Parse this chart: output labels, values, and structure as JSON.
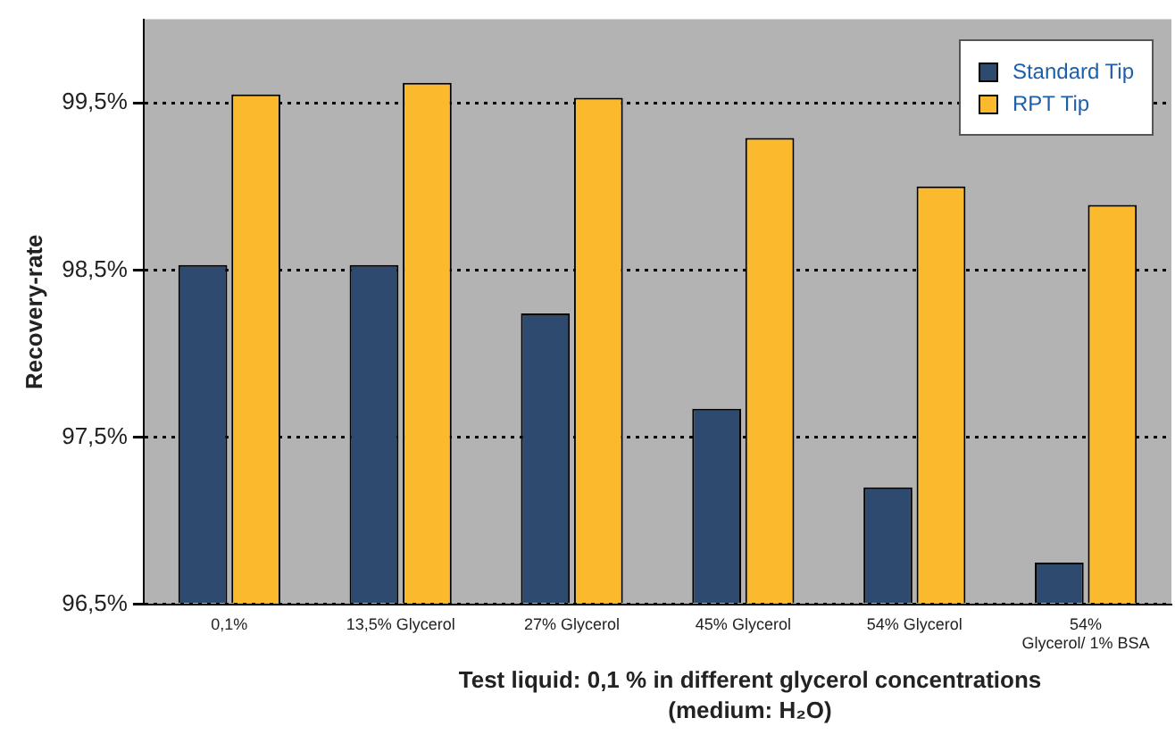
{
  "chart_data": {
    "type": "bar",
    "ylabel": "Recovery-rate",
    "xlabel": "Test liquid: 0,1 % in different glycerol concentrations (medium: H₂O)",
    "categories": [
      "0,1%",
      "13,5% Glycerol",
      "27% Glycerol",
      "45% Glycerol",
      "54% Glycerol",
      "54% Glycerol/ 1% BSA"
    ],
    "series": [
      {
        "name": "Standard Tip",
        "color": "#2e4a6e",
        "values": [
          98.53,
          98.53,
          98.24,
          97.67,
          97.2,
          96.75
        ]
      },
      {
        "name": "RPT Tip",
        "color": "#fbb92d",
        "values": [
          99.55,
          99.62,
          99.53,
          99.29,
          99.0,
          98.89
        ]
      }
    ],
    "ylim": [
      96.5,
      100
    ],
    "yticks": [
      {
        "value": 96.5,
        "label": "96,5%"
      },
      {
        "value": 97.5,
        "label": "97,5%"
      },
      {
        "value": 98.5,
        "label": "98,5%"
      },
      {
        "value": 99.5,
        "label": "99,5%"
      }
    ],
    "grid": "y",
    "legend": "top right"
  }
}
